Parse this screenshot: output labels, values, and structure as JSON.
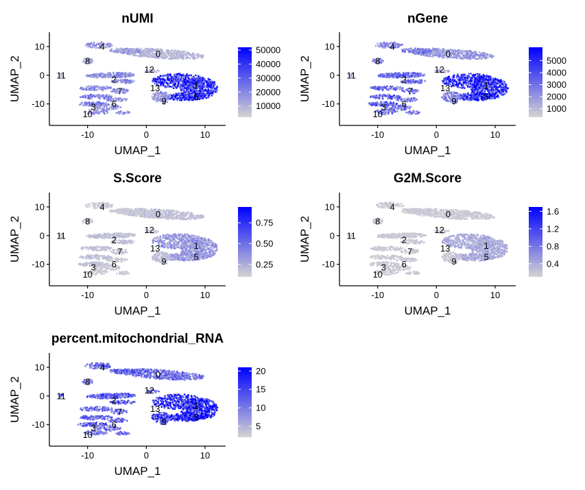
{
  "chart_data": [
    {
      "type": "scatter",
      "title": "nUMI",
      "xlabel": "UMAP_1",
      "ylabel": "UMAP_2",
      "xlim": [
        -16.5,
        13.5
      ],
      "ylim": [
        -17.5,
        15
      ],
      "xticks": [
        -10,
        0,
        10
      ],
      "yticks": [
        -10,
        0,
        10
      ],
      "colorbar": {
        "ticks": [
          10000,
          20000,
          30000,
          40000,
          50000
        ],
        "labels": [
          "10000",
          "20000",
          "30000",
          "40000",
          "50000"
        ],
        "min": 2000,
        "max": 52000,
        "low_color": "#d3d3d3",
        "high_color": "#0000ff"
      },
      "clusters": [
        {
          "id": "0",
          "x": 2,
          "y": 7.5,
          "level": 0.15
        },
        {
          "id": "1",
          "x": 8.5,
          "y": -3.5,
          "level": 0.85
        },
        {
          "id": "2",
          "x": -5.5,
          "y": -1.5,
          "level": 0.35
        },
        {
          "id": "3",
          "x": -9,
          "y": -11,
          "level": 0.45
        },
        {
          "id": "4",
          "x": -7.5,
          "y": 10,
          "level": 0.3
        },
        {
          "id": "5",
          "x": 8.5,
          "y": -7.5,
          "level": 0.85
        },
        {
          "id": "6",
          "x": -5.5,
          "y": -10,
          "level": 0.3
        },
        {
          "id": "7",
          "x": -4.5,
          "y": -5.5,
          "level": 0.35
        },
        {
          "id": "8",
          "x": -10,
          "y": 5,
          "level": 0.2
        },
        {
          "id": "9",
          "x": 3,
          "y": -9,
          "level": 0.3
        },
        {
          "id": "10",
          "x": -10,
          "y": -13.5,
          "level": 0.3
        },
        {
          "id": "11",
          "x": -14.5,
          "y": 0,
          "level": 0.1
        },
        {
          "id": "12",
          "x": 0.5,
          "y": 2,
          "level": 0.15
        },
        {
          "id": "13",
          "x": 1.5,
          "y": -4.5,
          "level": 0.2
        }
      ]
    },
    {
      "type": "scatter",
      "title": "nGene",
      "xlabel": "UMAP_1",
      "ylabel": "UMAP_2",
      "xlim": [
        -16.5,
        13.5
      ],
      "ylim": [
        -17.5,
        15
      ],
      "xticks": [
        -10,
        0,
        10
      ],
      "yticks": [
        -10,
        0,
        10
      ],
      "colorbar": {
        "ticks": [
          1000,
          2000,
          3000,
          4000,
          5000
        ],
        "labels": [
          "1000",
          "2000",
          "3000",
          "4000",
          "5000"
        ],
        "min": 300,
        "max": 6100,
        "low_color": "#d3d3d3",
        "high_color": "#0000ff"
      },
      "clusters": [
        {
          "id": "0",
          "x": 2,
          "y": 7.5,
          "level": 0.3
        },
        {
          "id": "1",
          "x": 8.5,
          "y": -3.5,
          "level": 0.9
        },
        {
          "id": "2",
          "x": -5.5,
          "y": -1.5,
          "level": 0.55
        },
        {
          "id": "3",
          "x": -9,
          "y": -11,
          "level": 0.6
        },
        {
          "id": "4",
          "x": -7.5,
          "y": 10,
          "level": 0.4
        },
        {
          "id": "5",
          "x": 8.5,
          "y": -7.5,
          "level": 0.9
        },
        {
          "id": "6",
          "x": -5.5,
          "y": -10,
          "level": 0.45
        },
        {
          "id": "7",
          "x": -4.5,
          "y": -5.5,
          "level": 0.55
        },
        {
          "id": "8",
          "x": -10,
          "y": 5,
          "level": 0.35
        },
        {
          "id": "9",
          "x": 3,
          "y": -9,
          "level": 0.4
        },
        {
          "id": "10",
          "x": -10,
          "y": -13.5,
          "level": 0.45
        },
        {
          "id": "11",
          "x": -14.5,
          "y": 0,
          "level": 0.15
        },
        {
          "id": "12",
          "x": 0.5,
          "y": 2,
          "level": 0.25
        },
        {
          "id": "13",
          "x": 1.5,
          "y": -4.5,
          "level": 0.35
        }
      ]
    },
    {
      "type": "scatter",
      "title": "S.Score",
      "xlabel": "UMAP_1",
      "ylabel": "UMAP_2",
      "xlim": [
        -16.5,
        13.5
      ],
      "ylim": [
        -17.5,
        15
      ],
      "xticks": [
        -10,
        0,
        10
      ],
      "yticks": [
        -10,
        0,
        10
      ],
      "colorbar": {
        "ticks": [
          0.25,
          0.5,
          0.75
        ],
        "labels": [
          "0.25",
          "0.50",
          "0.75"
        ],
        "min": 0.1,
        "max": 0.94,
        "low_color": "#d3d3d3",
        "high_color": "#0000ff"
      },
      "clusters": [
        {
          "id": "0",
          "x": 2,
          "y": 7.5,
          "level": 0.1
        },
        {
          "id": "1",
          "x": 8.5,
          "y": -3.5,
          "level": 0.3
        },
        {
          "id": "2",
          "x": -5.5,
          "y": -1.5,
          "level": 0.1
        },
        {
          "id": "3",
          "x": -9,
          "y": -11,
          "level": 0.1
        },
        {
          "id": "4",
          "x": -7.5,
          "y": 10,
          "level": 0.05
        },
        {
          "id": "5",
          "x": 8.5,
          "y": -7.5,
          "level": 0.3
        },
        {
          "id": "6",
          "x": -5.5,
          "y": -10,
          "level": 0.05
        },
        {
          "id": "7",
          "x": -4.5,
          "y": -5.5,
          "level": 0.1
        },
        {
          "id": "8",
          "x": -10,
          "y": 5,
          "level": 0.05
        },
        {
          "id": "9",
          "x": 3,
          "y": -9,
          "level": 0.1
        },
        {
          "id": "10",
          "x": -10,
          "y": -13.5,
          "level": 0.05
        },
        {
          "id": "11",
          "x": -14.5,
          "y": 0,
          "level": 0.05
        },
        {
          "id": "12",
          "x": 0.5,
          "y": 2,
          "level": 0.05
        },
        {
          "id": "13",
          "x": 1.5,
          "y": -4.5,
          "level": 0.15
        }
      ]
    },
    {
      "type": "scatter",
      "title": "G2M.Score",
      "xlabel": "UMAP_1",
      "ylabel": "UMAP_2",
      "xlim": [
        -16.5,
        13.5
      ],
      "ylim": [
        -17.5,
        15
      ],
      "xticks": [
        -10,
        0,
        10
      ],
      "yticks": [
        -10,
        0,
        10
      ],
      "colorbar": {
        "ticks": [
          0.4,
          0.8,
          1.2,
          1.6
        ],
        "labels": [
          "0.4",
          "0.8",
          "1.2",
          "1.6"
        ],
        "min": 0.1,
        "max": 1.7,
        "low_color": "#d3d3d3",
        "high_color": "#0000ff"
      },
      "clusters": [
        {
          "id": "0",
          "x": 2,
          "y": 7.5,
          "level": 0.05
        },
        {
          "id": "1",
          "x": 8.5,
          "y": -3.5,
          "level": 0.2
        },
        {
          "id": "2",
          "x": -5.5,
          "y": -1.5,
          "level": 0.05
        },
        {
          "id": "3",
          "x": -9,
          "y": -11,
          "level": 0.05
        },
        {
          "id": "4",
          "x": -7.5,
          "y": 10,
          "level": 0.05
        },
        {
          "id": "5",
          "x": 8.5,
          "y": -7.5,
          "level": 0.2
        },
        {
          "id": "6",
          "x": -5.5,
          "y": -10,
          "level": 0.05
        },
        {
          "id": "7",
          "x": -4.5,
          "y": -5.5,
          "level": 0.05
        },
        {
          "id": "8",
          "x": -10,
          "y": 5,
          "level": 0.05
        },
        {
          "id": "9",
          "x": 3,
          "y": -9,
          "level": 0.05
        },
        {
          "id": "10",
          "x": -10,
          "y": -13.5,
          "level": 0.05
        },
        {
          "id": "11",
          "x": -14.5,
          "y": 0,
          "level": 0.05
        },
        {
          "id": "12",
          "x": 0.5,
          "y": 2,
          "level": 0.05
        },
        {
          "id": "13",
          "x": 1.5,
          "y": -4.5,
          "level": 0.1
        }
      ]
    },
    {
      "type": "scatter",
      "title": "percent.mitochondrial_RNA",
      "xlabel": "UMAP_1",
      "ylabel": "UMAP_2",
      "xlim": [
        -16.5,
        13.5
      ],
      "ylim": [
        -17.5,
        15
      ],
      "xticks": [
        -10,
        0,
        10
      ],
      "yticks": [
        -10,
        0,
        10
      ],
      "colorbar": {
        "ticks": [
          5,
          10,
          15,
          20
        ],
        "labels": [
          "5",
          "10",
          "15",
          "20"
        ],
        "min": 2,
        "max": 21,
        "low_color": "#d3d3d3",
        "high_color": "#0000ff"
      },
      "clusters": [
        {
          "id": "0",
          "x": 2,
          "y": 7.5,
          "level": 0.5
        },
        {
          "id": "1",
          "x": 8.5,
          "y": -3.5,
          "level": 0.95
        },
        {
          "id": "2",
          "x": -5.5,
          "y": -1.5,
          "level": 0.6
        },
        {
          "id": "3",
          "x": -9,
          "y": -11,
          "level": 0.6
        },
        {
          "id": "4",
          "x": -7.5,
          "y": 10,
          "level": 0.55
        },
        {
          "id": "5",
          "x": 8.5,
          "y": -7.5,
          "level": 0.95
        },
        {
          "id": "6",
          "x": -5.5,
          "y": -10,
          "level": 0.5
        },
        {
          "id": "7",
          "x": -4.5,
          "y": -5.5,
          "level": 0.55
        },
        {
          "id": "8",
          "x": -10,
          "y": 5,
          "level": 0.45
        },
        {
          "id": "9",
          "x": 3,
          "y": -9,
          "level": 0.7
        },
        {
          "id": "10",
          "x": -10,
          "y": -13.5,
          "level": 0.45
        },
        {
          "id": "11",
          "x": -14.5,
          "y": 0,
          "level": 0.7
        },
        {
          "id": "12",
          "x": 0.5,
          "y": 2,
          "level": 0.55
        },
        {
          "id": "13",
          "x": 1.5,
          "y": -4.5,
          "level": 0.6
        }
      ]
    }
  ]
}
